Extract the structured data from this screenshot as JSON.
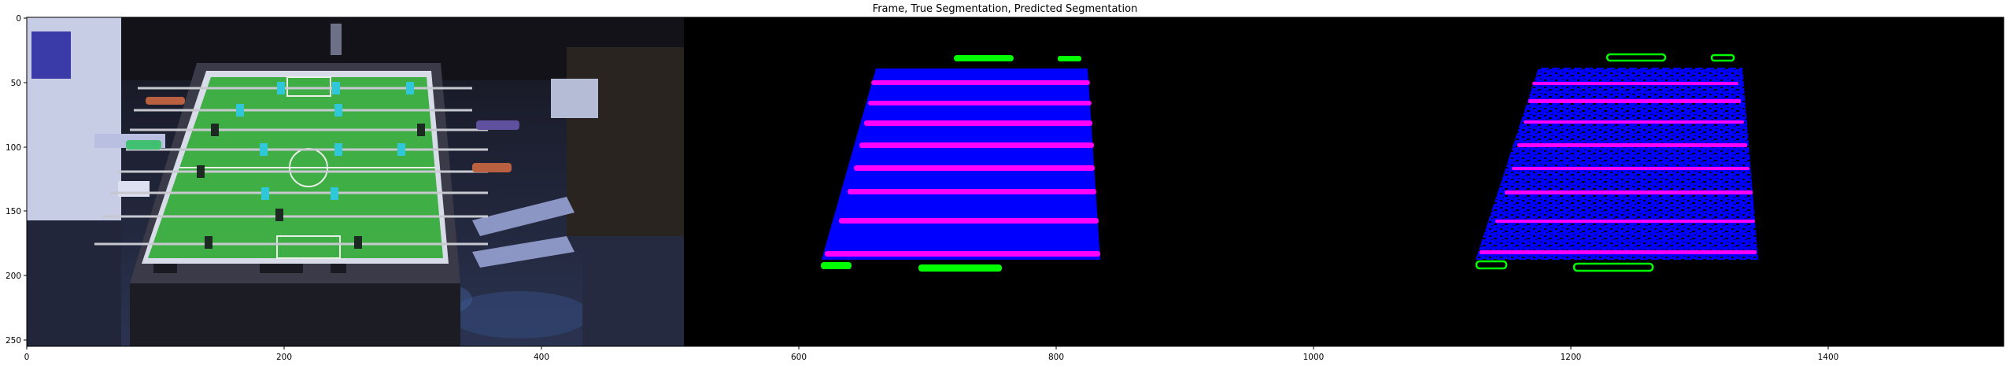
{
  "figure": {
    "title": "Frame, True Segmentation, Predicted Segmentation"
  },
  "axes": {
    "xlim": [
      0,
      1536
    ],
    "ylim": [
      256,
      0
    ],
    "x_ticks": [
      "0",
      "200",
      "400",
      "600",
      "800",
      "1000",
      "1200",
      "1400"
    ],
    "y_ticks": [
      "0",
      "50",
      "100",
      "150",
      "200",
      "250"
    ]
  },
  "panels": [
    {
      "name": "Frame",
      "content": "photo of foosball table with players"
    },
    {
      "name": "True Segmentation",
      "content": "mask: blue table, magenta rods, green handles"
    },
    {
      "name": "Predicted Segmentation",
      "content": "noisy mask: blue table, magenta rods, green handles"
    }
  ],
  "colors": {
    "table": "#0000ff",
    "rods": "#ff00ff",
    "handles": "#00ff00",
    "background": "#000000"
  }
}
